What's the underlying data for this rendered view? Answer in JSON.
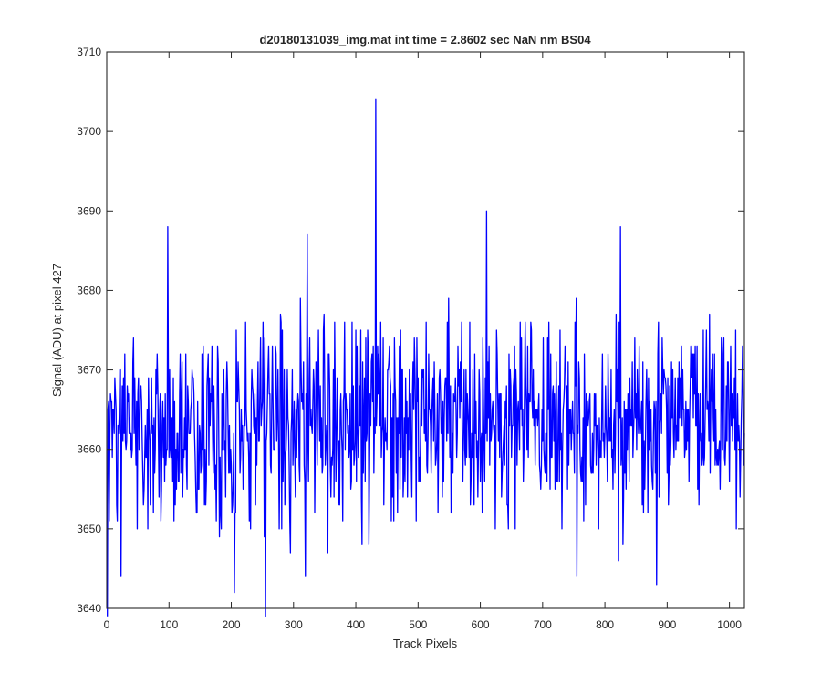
{
  "chart_data": {
    "type": "line",
    "title": "d20180131039_img.mat int time = 2.8602 sec  NaN nm BS04",
    "xlabel": "Track Pixels",
    "ylabel": "Signal (ADU) at pixel 427",
    "xlim": [
      0,
      1024
    ],
    "ylim": [
      3640,
      3710
    ],
    "xticks": [
      0,
      100,
      200,
      300,
      400,
      500,
      600,
      700,
      800,
      900,
      1000
    ],
    "yticks": [
      3640,
      3650,
      3660,
      3670,
      3680,
      3690,
      3700,
      3710
    ],
    "grid": false,
    "series": [
      {
        "color": "#0000ff",
        "x_start": 1,
        "x_step": 1,
        "count": 1024,
        "mean": 3663,
        "std_dev": 6.5,
        "min": 3639,
        "max": 3704,
        "notable_points": [
          {
            "x": 1,
            "y": 3639
          },
          {
            "x": 98,
            "y": 3688
          },
          {
            "x": 205,
            "y": 3642
          },
          {
            "x": 255,
            "y": 3639
          },
          {
            "x": 322,
            "y": 3687
          },
          {
            "x": 432,
            "y": 3704
          },
          {
            "x": 610,
            "y": 3690
          },
          {
            "x": 825,
            "y": 3688
          },
          {
            "x": 883,
            "y": 3643
          }
        ]
      }
    ]
  }
}
